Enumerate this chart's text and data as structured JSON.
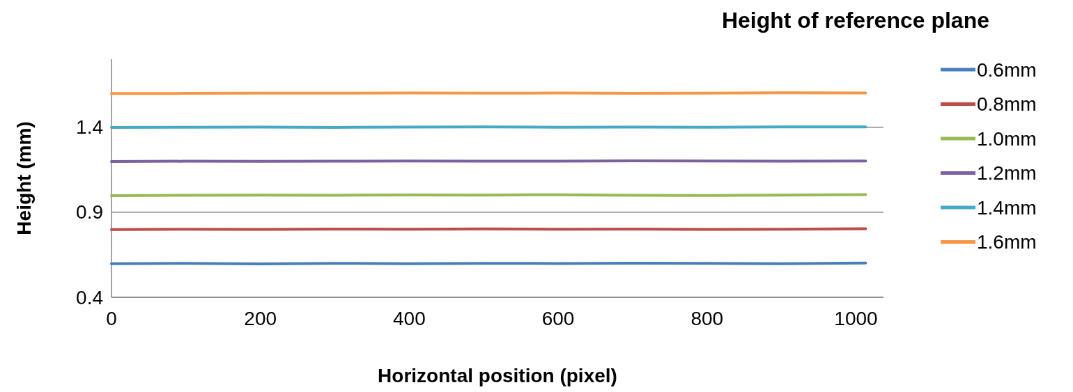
{
  "chart_data": {
    "type": "line",
    "xlabel": "Horizontal position (pixel)",
    "ylabel": "Height (mm)",
    "legend_title": "Height of reference plane",
    "x": [
      0,
      100,
      200,
      300,
      400,
      500,
      600,
      700,
      800,
      900,
      1013
    ],
    "series": [
      {
        "name": "0.6mm",
        "color": "#4a7ebb",
        "values": [
          0.598,
          0.6,
          0.597,
          0.6,
          0.598,
          0.6,
          0.599,
          0.601,
          0.6,
          0.598,
          0.602
        ]
      },
      {
        "name": "0.8mm",
        "color": "#be4b48",
        "values": [
          0.798,
          0.8,
          0.799,
          0.801,
          0.8,
          0.802,
          0.8,
          0.801,
          0.799,
          0.8,
          0.803
        ]
      },
      {
        "name": "1.0mm",
        "color": "#98b954",
        "values": [
          0.998,
          1.0,
          1.001,
          1.0,
          1.002,
          1.001,
          1.003,
          1.0,
          0.999,
          1.001,
          1.004
        ]
      },
      {
        "name": "1.2mm",
        "color": "#7d60a0",
        "values": [
          1.198,
          1.2,
          1.199,
          1.2,
          1.201,
          1.2,
          1.2,
          1.202,
          1.201,
          1.2,
          1.201
        ]
      },
      {
        "name": "1.4mm",
        "color": "#46aac5",
        "values": [
          1.399,
          1.4,
          1.401,
          1.399,
          1.401,
          1.402,
          1.4,
          1.401,
          1.4,
          1.402,
          1.402
        ]
      },
      {
        "name": "1.6mm",
        "color": "#f79646",
        "values": [
          1.598,
          1.599,
          1.6,
          1.6,
          1.601,
          1.6,
          1.601,
          1.599,
          1.6,
          1.602,
          1.601
        ]
      }
    ],
    "xlim": [
      0,
      1037
    ],
    "xticks": [
      0,
      200,
      400,
      600,
      800,
      1000
    ],
    "ylim": [
      0.4,
      1.8
    ],
    "yticks": [
      0.4,
      0.9,
      1.4
    ],
    "grid": "y",
    "legend": "right",
    "line_style": "solid",
    "marker": "none"
  }
}
